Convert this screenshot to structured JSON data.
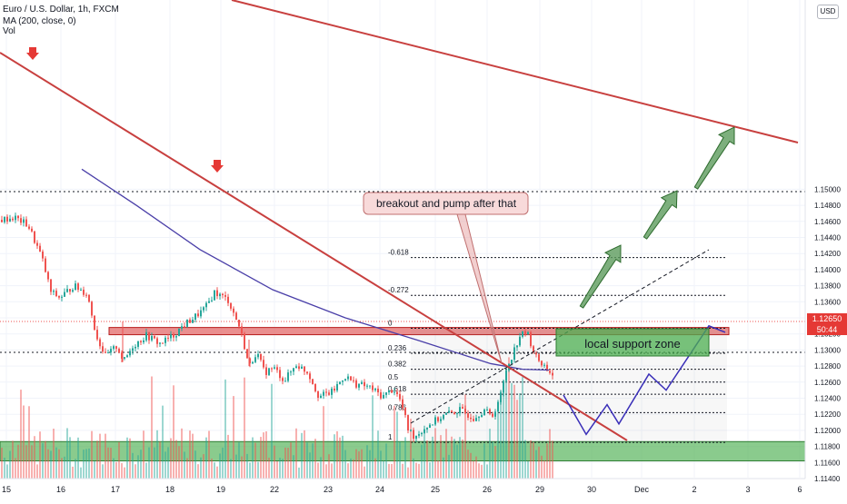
{
  "header": {
    "symbol": "Euro / U.S. Dollar, 1h, FXCM",
    "ma": "MA (200, close, 0)",
    "vol": "Vol",
    "currency": "USD"
  },
  "current_price": {
    "value": "1.12650",
    "countdown": "50:44"
  },
  "colors": {
    "up": "#26a69a",
    "down": "#ef5350",
    "trend": "#c8403f",
    "ma": "#4a3fa8",
    "zone": "#4caf50",
    "resistance": "#e57373",
    "projection": "#3a2fb8",
    "arrow": "#5d9b5d"
  },
  "annotations": {
    "callout": "breakout and pump after that",
    "zone": "local support zone"
  },
  "chart_data": {
    "type": "candlestick",
    "ylim": [
      1.114,
      1.152
    ],
    "y_ticks": [
      "1.11400",
      "1.11600",
      "1.11800",
      "1.12000",
      "1.12200",
      "1.12400",
      "1.12600",
      "1.12800",
      "1.13000",
      "1.13200",
      "1.13400",
      "1.13600",
      "1.13800",
      "1.14000",
      "1.14200",
      "1.14400",
      "1.14600",
      "1.14800",
      "1.15000"
    ],
    "x_ticks": [
      "15",
      "16",
      "17",
      "18",
      "19",
      "22",
      "23",
      "24",
      "25",
      "26",
      "29",
      "30",
      "Dec",
      "2",
      "3",
      "6"
    ],
    "fib_levels": [
      {
        "label": "0",
        "value": 1.1327
      },
      {
        "label": "0.236",
        "value": 1.1296
      },
      {
        "label": "0.382",
        "value": 1.1276
      },
      {
        "label": "0.5",
        "value": 1.126
      },
      {
        "label": "0.618",
        "value": 1.1245
      },
      {
        "label": "0.786",
        "value": 1.1222
      },
      {
        "label": "1",
        "value": 1.1185
      },
      {
        "label": "-0.272",
        "value": 1.1368
      },
      {
        "label": "-0.618",
        "value": 1.1415
      }
    ],
    "levels": {
      "resistance_top": 1.1328,
      "resistance_bottom": 1.1319,
      "green_zone_top": 1.1186,
      "green_zone_bottom": 1.1162,
      "dotted_top": 1.1497,
      "dotted_mid": 1.1306
    },
    "path": [
      [
        0,
        1.1462
      ],
      [
        15,
        1.1465
      ],
      [
        30,
        1.1455
      ],
      [
        45,
        1.1415
      ],
      [
        55,
        1.1372
      ],
      [
        65,
        1.1365
      ],
      [
        80,
        1.138
      ],
      [
        95,
        1.137
      ],
      [
        105,
        1.1318
      ],
      [
        115,
        1.1292
      ],
      [
        128,
        1.1305
      ],
      [
        135,
        1.1285
      ],
      [
        145,
        1.1305
      ],
      [
        160,
        1.1318
      ],
      [
        175,
        1.1308
      ],
      [
        190,
        1.1318
      ],
      [
        200,
        1.133
      ],
      [
        212,
        1.134
      ],
      [
        225,
        1.1352
      ],
      [
        235,
        1.1372
      ],
      [
        250,
        1.1362
      ],
      [
        262,
        1.133
      ],
      [
        268,
        1.1305
      ],
      [
        273,
        1.1278
      ],
      [
        281,
        1.1298
      ],
      [
        290,
        1.1272
      ],
      [
        300,
        1.1278
      ],
      [
        312,
        1.1262
      ],
      [
        325,
        1.1282
      ],
      [
        338,
        1.1272
      ],
      [
        350,
        1.1242
      ],
      [
        365,
        1.1248
      ],
      [
        378,
        1.1268
      ],
      [
        390,
        1.1258
      ],
      [
        405,
        1.1254
      ],
      [
        420,
        1.1242
      ],
      [
        432,
        1.1252
      ],
      [
        440,
        1.1236
      ],
      [
        448,
        1.1202
      ],
      [
        455,
        1.1192
      ],
      [
        465,
        1.1202
      ],
      [
        475,
        1.121
      ],
      [
        490,
        1.122
      ],
      [
        505,
        1.1225
      ],
      [
        520,
        1.1216
      ],
      [
        532,
        1.1226
      ],
      [
        540,
        1.1216
      ],
      [
        550,
        1.1244
      ],
      [
        556,
        1.1276
      ],
      [
        563,
        1.1295
      ],
      [
        571,
        1.1318
      ],
      [
        579,
        1.1322
      ],
      [
        588,
        1.1292
      ],
      [
        598,
        1.128
      ],
      [
        608,
        1.1268
      ]
    ],
    "ma_points": [
      [
        90,
        1.1525
      ],
      [
        150,
        1.148
      ],
      [
        220,
        1.1425
      ],
      [
        300,
        1.1375
      ],
      [
        380,
        1.134
      ],
      [
        460,
        1.1312
      ],
      [
        540,
        1.1283
      ],
      [
        575,
        1.1276
      ],
      [
        604,
        1.1275
      ]
    ],
    "projection": [
      [
        620,
        1.1244
      ],
      [
        645,
        1.1195
      ],
      [
        668,
        1.1232
      ],
      [
        681,
        1.1208
      ],
      [
        714,
        1.127
      ],
      [
        733,
        1.125
      ],
      [
        780,
        1.133
      ],
      [
        798,
        1.1322
      ]
    ],
    "candle_ranges": [
      {
        "x_start": 0,
        "x_end": 610,
        "open": 1.1462,
        "close": 1.1268
      }
    ],
    "volume": {
      "ylim": [
        0,
        1000
      ]
    }
  }
}
